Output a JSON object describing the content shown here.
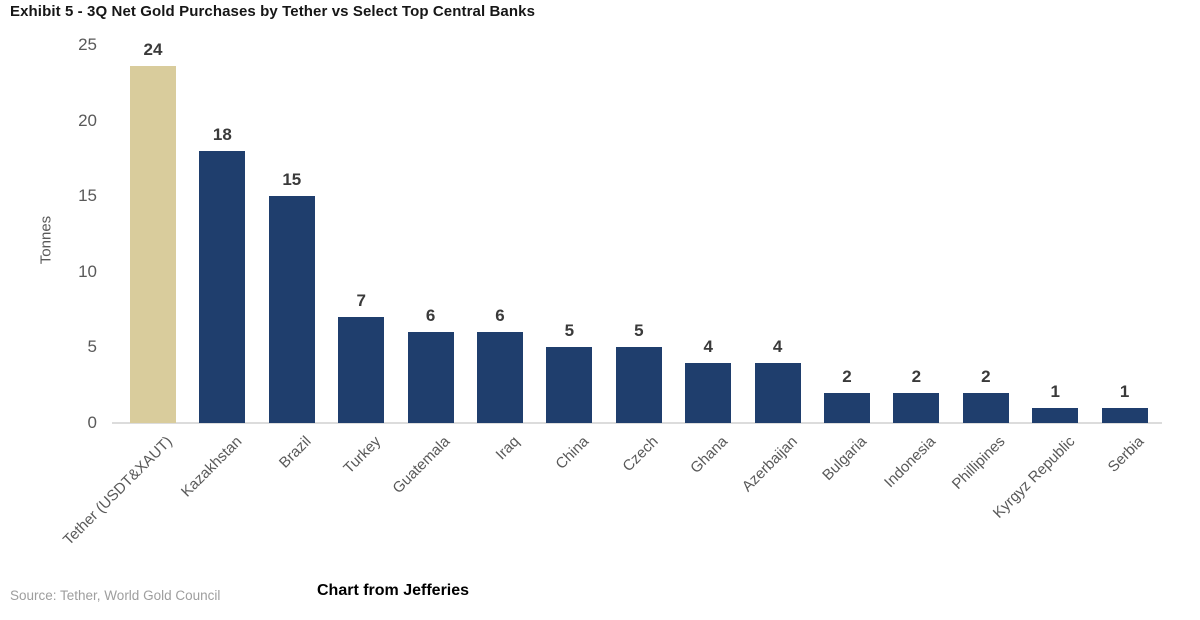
{
  "title": "Exhibit 5 - 3Q Net Gold Purchases by Tether vs Select Top Central Banks",
  "source_note": "Source: Tether, World Gold Council",
  "caption": "Chart from Jefferies",
  "chart_data": {
    "type": "bar",
    "title": "Exhibit 5 - 3Q Net Gold Purchases by Tether vs Select Top Central Banks",
    "xlabel": "",
    "ylabel": "Tonnes",
    "ylim": [
      0,
      25
    ],
    "yticks": [
      0,
      5,
      10,
      15,
      20,
      25
    ],
    "grid": false,
    "legend_position": "none",
    "categories": [
      "Tether (USDT&XAUT)",
      "Kazakhstan",
      "Brazil",
      "Turkey",
      "Guatemala",
      "Iraq",
      "China",
      "Czech",
      "Ghana",
      "Azerbaijan",
      "Bulgaria",
      "Indonesia",
      "Phillipines",
      "Kyrgyz Republic",
      "Serbia"
    ],
    "values": [
      24,
      18,
      15,
      7,
      6,
      6,
      5,
      5,
      4,
      4,
      2,
      2,
      2,
      1,
      1
    ],
    "drawn_values": [
      23.6,
      18,
      15,
      7,
      6,
      6,
      5,
      5,
      4,
      4,
      2,
      2,
      2,
      1,
      1
    ],
    "highlight_index": 0,
    "colors": {
      "highlight_bar": "#d9cc9c",
      "bar": "#1f3e6d",
      "axis_line": "#dcdcdc",
      "tick_label": "#595959",
      "value_label": "#3a3a3a"
    }
  }
}
